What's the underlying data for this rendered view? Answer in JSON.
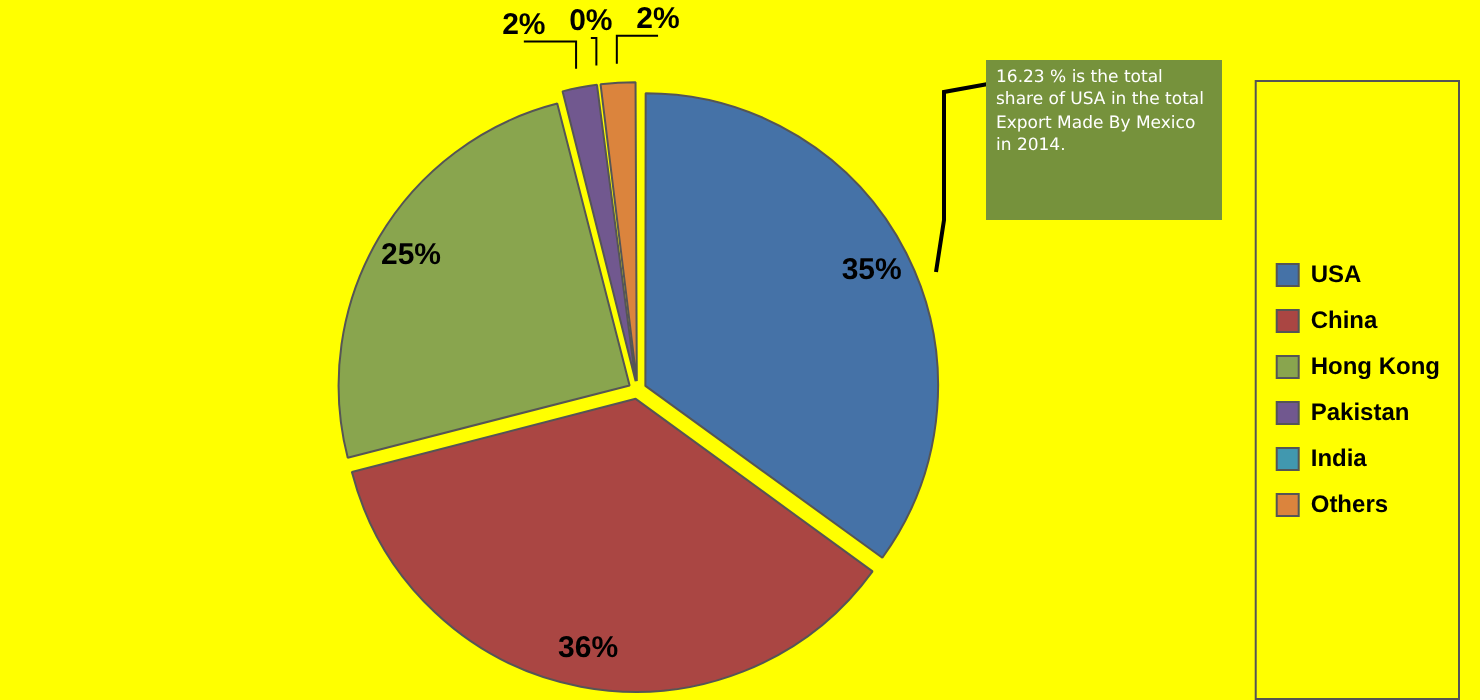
{
  "chart_data": {
    "type": "pie",
    "categories": [
      "USA",
      "China",
      "Hong Kong",
      "Pakistan",
      "India",
      "Others"
    ],
    "values": [
      35,
      36,
      25,
      2,
      0,
      2
    ],
    "value_labels": [
      "35%",
      "36%",
      "25%",
      "2%",
      "0%",
      "2%"
    ],
    "colors": [
      "#4572a7",
      "#aa4643",
      "#89a54e",
      "#71588f",
      "#4198af",
      "#db843d"
    ],
    "legend": "right",
    "annotations": [
      "16.23 % is the total share of USA in the total Export Made By Mexico in 2014."
    ]
  }
}
